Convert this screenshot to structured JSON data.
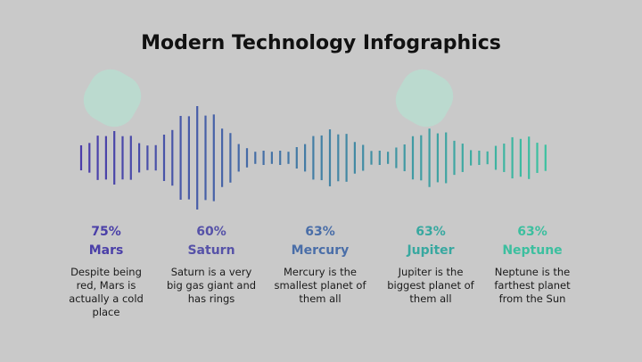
{
  "title": "Modern Technology Infographics",
  "items": [
    {
      "percent": "75%",
      "name": "Mars",
      "description": "Despite being red, Mars is actually a cold place"
    },
    {
      "percent": "60%",
      "name": "Saturn",
      "description": "Saturn is a very big gas giant and has rings"
    },
    {
      "percent": "63%",
      "name": "Mercury",
      "description": "Mercury is the smallest planet of them all"
    },
    {
      "percent": "63%",
      "name": "Jupiter",
      "description": "Jupiter is the biggest planet of them all"
    },
    {
      "percent": "63%",
      "name": "Neptune",
      "description": "Neptune is the farthest planet from the Sun"
    }
  ]
}
